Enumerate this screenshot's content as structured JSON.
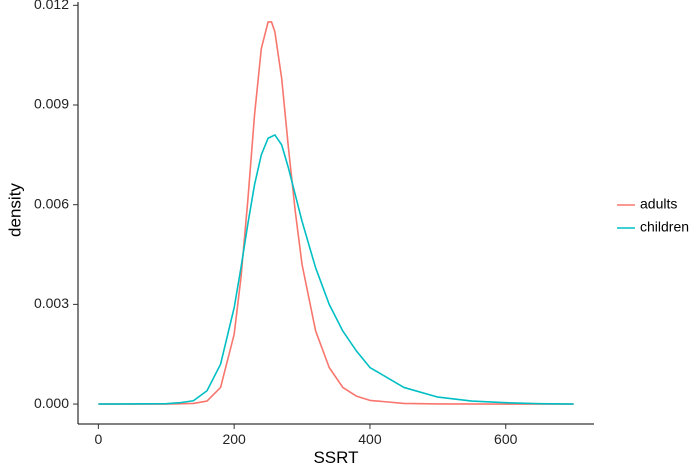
{
  "chart_data": {
    "type": "line",
    "title": "",
    "xlabel": "SSRT",
    "ylabel": "density",
    "xlim": [
      -30,
      730
    ],
    "ylim": [
      -0.0006,
      0.0121
    ],
    "x_ticks": [
      0,
      200,
      400,
      600
    ],
    "x_tick_labels": [
      "0",
      "200",
      "400",
      "600"
    ],
    "y_ticks": [
      0.0,
      0.003,
      0.006,
      0.009,
      0.012
    ],
    "y_tick_labels": [
      "0.000",
      "0.003",
      "0.006",
      "0.009",
      "0.012"
    ],
    "grid": false,
    "legend_position": "right",
    "series": [
      {
        "name": "adults",
        "color": "#F8766D",
        "x": [
          0,
          100,
          140,
          160,
          180,
          200,
          210,
          220,
          230,
          240,
          250,
          255,
          260,
          270,
          280,
          290,
          300,
          320,
          340,
          360,
          380,
          400,
          450,
          500,
          600,
          700
        ],
        "y": [
          0,
          1e-06,
          2e-05,
          9e-05,
          0.0005,
          0.0021,
          0.0038,
          0.0061,
          0.0087,
          0.0107,
          0.0115,
          0.0115,
          0.0112,
          0.0098,
          0.0077,
          0.0058,
          0.0042,
          0.0022,
          0.0011,
          0.0005,
          0.00024,
          0.00011,
          2e-05,
          4e-06,
          0,
          0
        ]
      },
      {
        "name": "children",
        "color": "#00BFC4",
        "x": [
          0,
          100,
          120,
          140,
          160,
          180,
          200,
          210,
          220,
          230,
          240,
          250,
          260,
          270,
          280,
          290,
          300,
          320,
          340,
          360,
          380,
          400,
          450,
          500,
          550,
          600,
          650,
          700
        ],
        "y": [
          0,
          1e-05,
          4e-05,
          0.0001,
          0.0004,
          0.0012,
          0.0029,
          0.0041,
          0.0054,
          0.0066,
          0.0075,
          0.008,
          0.0081,
          0.0078,
          0.0071,
          0.0063,
          0.0055,
          0.0041,
          0.003,
          0.0022,
          0.0016,
          0.0011,
          0.0005,
          0.00021,
          9e-05,
          4e-05,
          1e-05,
          0
        ]
      }
    ]
  }
}
